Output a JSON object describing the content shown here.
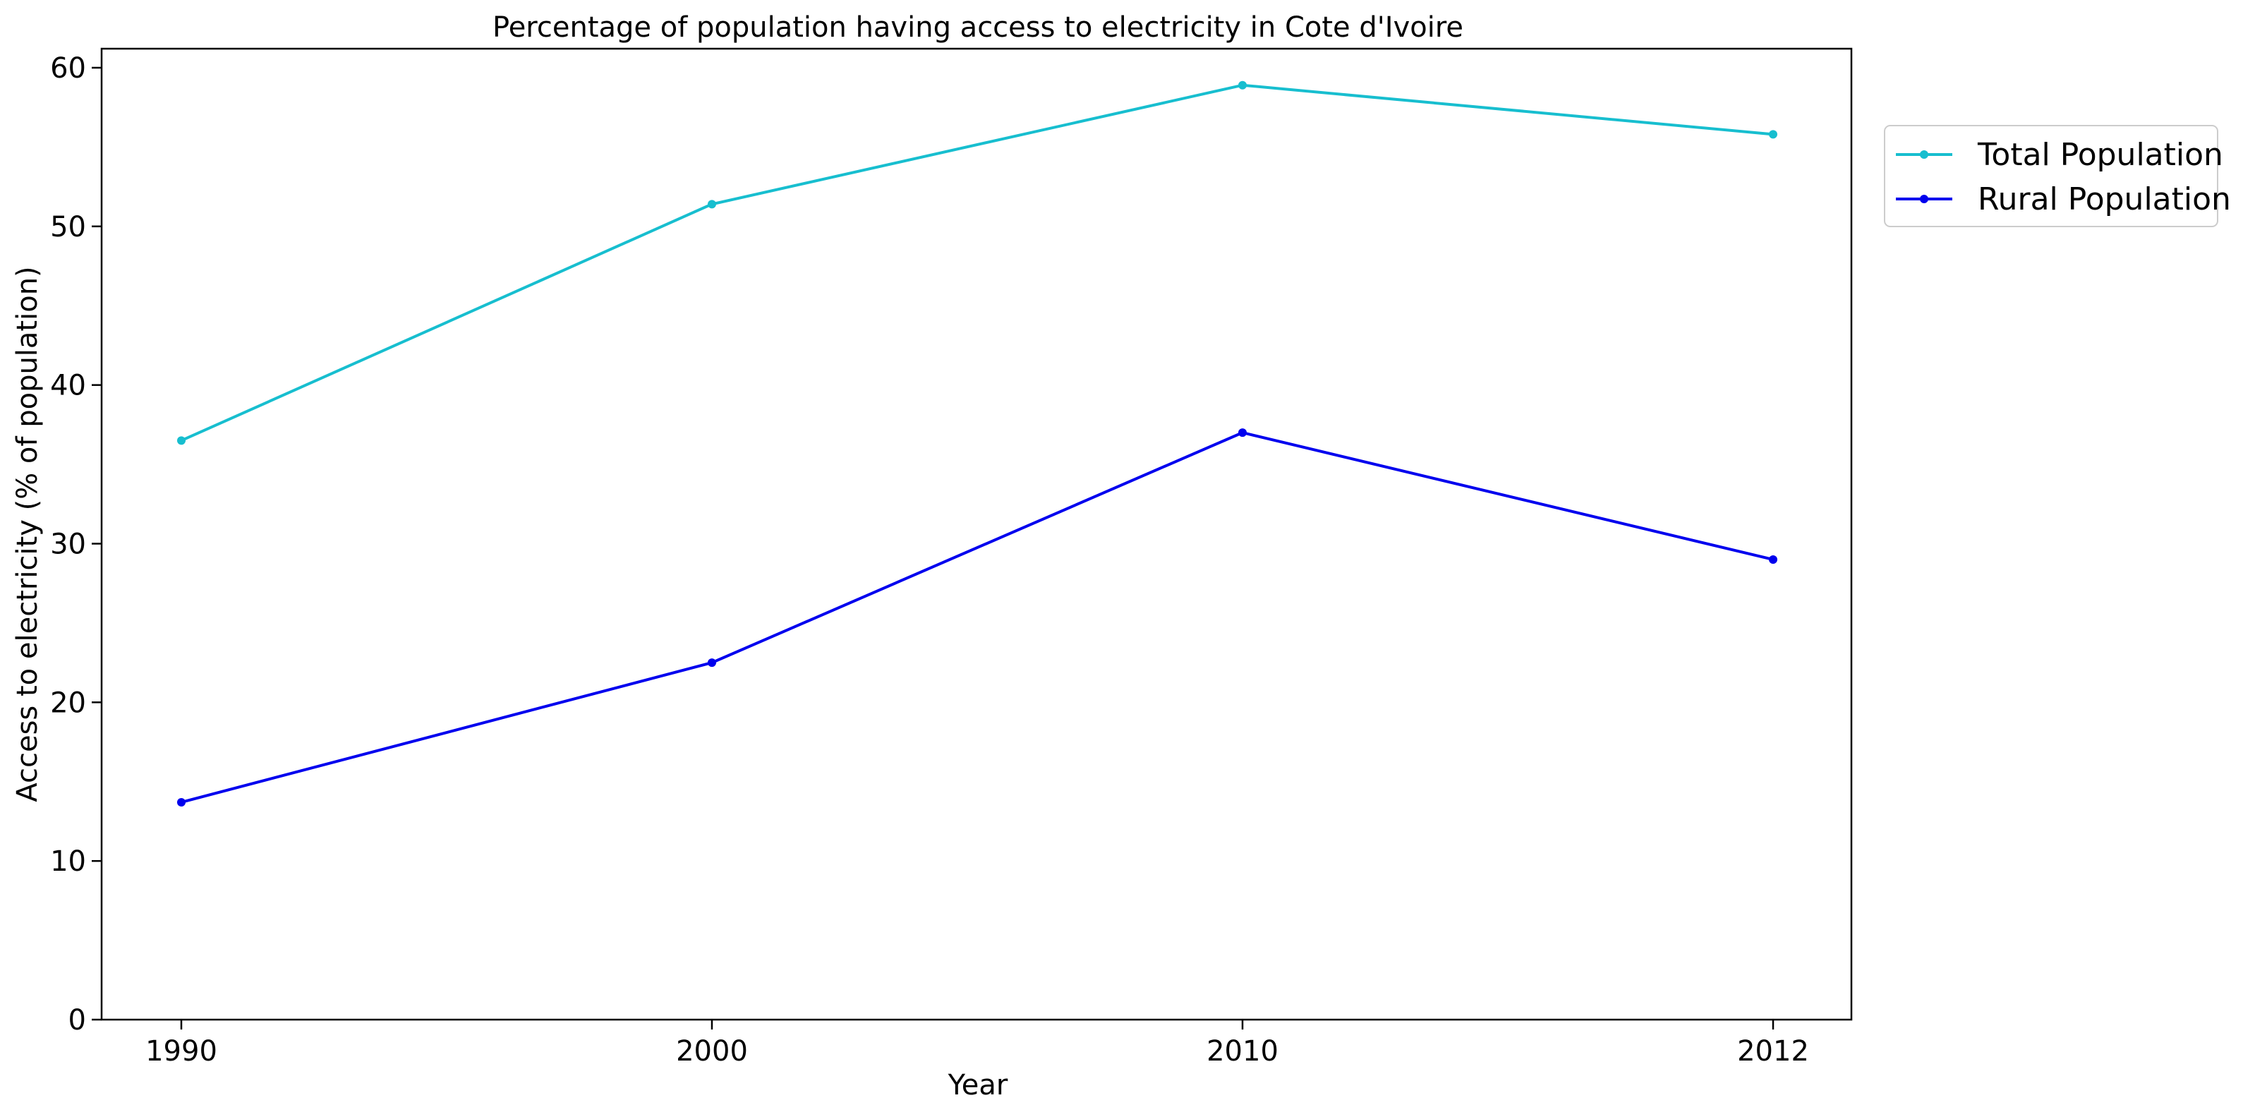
{
  "chart_data": {
    "type": "line",
    "title": "Percentage of population having access to electricity in Cote d'Ivoire",
    "xlabel": "Year",
    "ylabel": "Access to electricity (% of population)",
    "categories": [
      "1990",
      "2000",
      "2010",
      "2012"
    ],
    "series": [
      {
        "name": "Total Population",
        "color": "#17becf",
        "values": [
          36.5,
          51.4,
          58.9,
          55.8
        ]
      },
      {
        "name": "Rural Population",
        "color": "#0000ee",
        "values": [
          13.7,
          22.5,
          37.0,
          29.0
        ]
      }
    ],
    "ylim": [
      0,
      61.2
    ],
    "yticks": [
      "0",
      "10",
      "20",
      "30",
      "40",
      "50",
      "60"
    ],
    "grid": false,
    "legend": "upper-right-outside"
  }
}
